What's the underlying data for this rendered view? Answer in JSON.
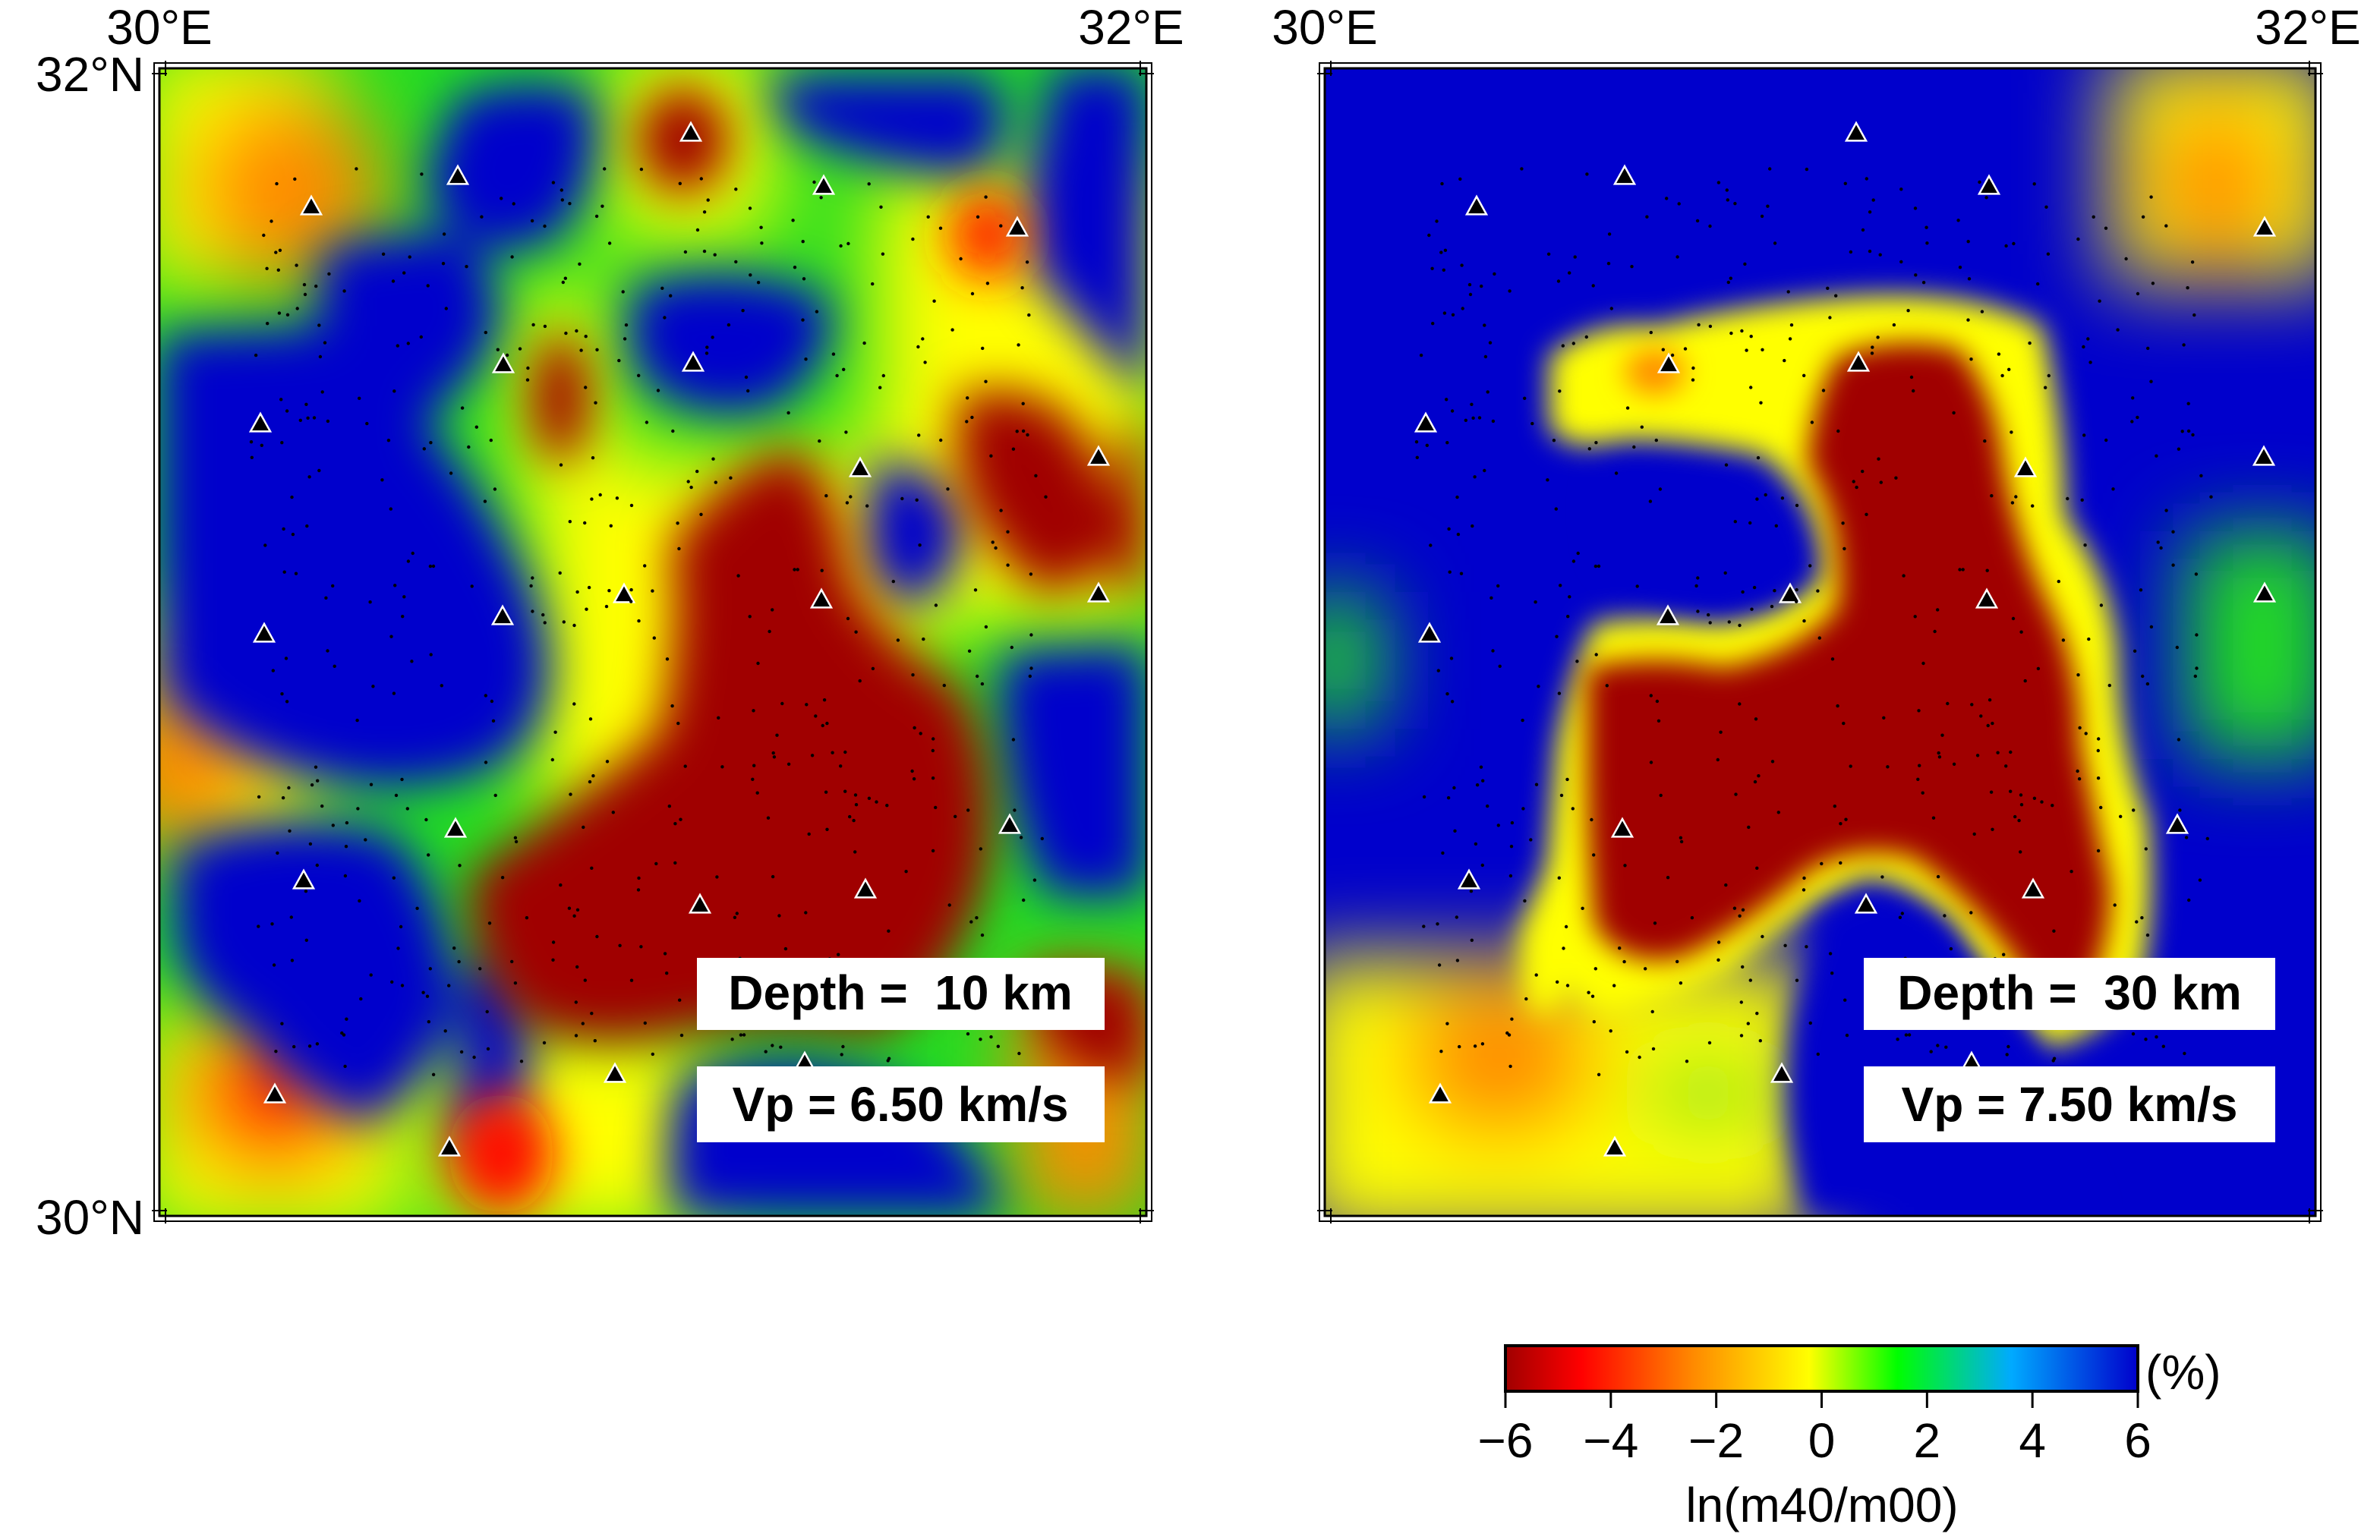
{
  "panels": [
    {
      "lon_labels": [
        "30°E",
        "32°E"
      ],
      "lat_labels": [
        "32°N",
        "30°N"
      ],
      "depth_text": "Depth =  10 km",
      "vp_text": "Vp = 6.50 km/s"
    },
    {
      "lon_labels": [
        "30°E",
        "32°E"
      ],
      "lat_labels": [],
      "depth_text": "Depth =  30 km",
      "vp_text": "Vp = 7.50 km/s"
    }
  ],
  "map_extent": {
    "lon": [
      30,
      32
    ],
    "lat": [
      30,
      32
    ]
  },
  "colorbar": {
    "ticks": [
      "−6",
      "−4",
      "−2",
      "0",
      "2",
      "4",
      "6"
    ],
    "unit": "(%)",
    "label": "ln(m40/m00)",
    "range": [
      -6,
      6
    ],
    "colors": [
      "#a00000",
      "#ff0000",
      "#ff8c00",
      "#ffff00",
      "#00ff00",
      "#00aaff",
      "#0000cc"
    ]
  },
  "colors": {
    "dark_red": "#a00000",
    "blue": "#0000cc",
    "yellow": "#ffff00",
    "green": "#22dd22",
    "station_fill": "#000000",
    "station_outline": "#ffffff"
  }
}
